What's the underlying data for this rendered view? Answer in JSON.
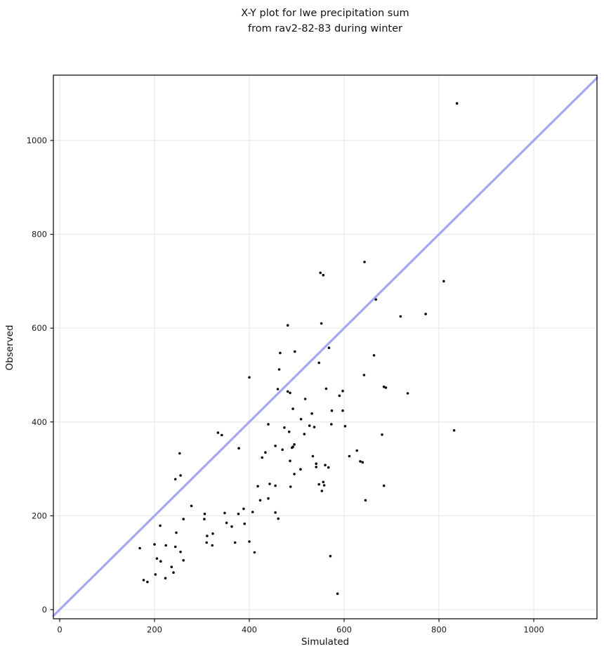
{
  "title": {
    "line1": "X-Y plot for lwe precipitation sum",
    "line2": "from rav2-82-83 during winter"
  },
  "chart_data": {
    "type": "scatter",
    "title": "X-Y plot for lwe precipitation sum from rav2-82-83 during winter",
    "xlabel": "Simulated",
    "ylabel": "Observed",
    "xlim": [
      -13.3,
      1133.3
    ],
    "ylim": [
      -19.5,
      1139.2
    ],
    "xticks": [
      0,
      200,
      400,
      600,
      800,
      1000
    ],
    "yticks": [
      0,
      200,
      400,
      600,
      800,
      1000
    ],
    "grid": true,
    "grid_color": "#e9e9e9",
    "spine_color": "#000000",
    "identity_line": {
      "type": "y=x",
      "x_start": -13.3,
      "x_end": 1133.3,
      "color": "#a5a7f2",
      "width": 3.2
    },
    "marker": {
      "color": "#0b0b0b",
      "radius": 1.8
    },
    "points": [
      [
        169,
        131
      ],
      [
        177,
        63
      ],
      [
        185,
        59
      ],
      [
        200,
        139
      ],
      [
        202,
        75
      ],
      [
        205,
        109
      ],
      [
        212,
        179
      ],
      [
        213,
        103
      ],
      [
        223,
        67
      ],
      [
        224,
        137
      ],
      [
        236,
        91
      ],
      [
        240,
        79
      ],
      [
        244,
        134
      ],
      [
        244,
        278
      ],
      [
        246,
        164
      ],
      [
        253,
        333
      ],
      [
        255,
        123
      ],
      [
        255,
        286
      ],
      [
        261,
        105
      ],
      [
        261,
        193
      ],
      [
        278,
        221
      ],
      [
        305,
        193
      ],
      [
        306,
        204
      ],
      [
        310,
        143
      ],
      [
        311,
        157
      ],
      [
        322,
        137
      ],
      [
        323,
        162
      ],
      [
        334,
        377
      ],
      [
        342,
        372
      ],
      [
        348,
        206
      ],
      [
        352,
        185
      ],
      [
        363,
        177
      ],
      [
        370,
        143
      ],
      [
        377,
        204
      ],
      [
        378,
        344
      ],
      [
        388,
        215
      ],
      [
        390,
        183
      ],
      [
        400,
        145
      ],
      [
        400,
        495
      ],
      [
        407,
        208
      ],
      [
        411,
        122
      ],
      [
        418,
        263
      ],
      [
        423,
        233
      ],
      [
        427,
        324
      ],
      [
        434,
        335
      ],
      [
        440,
        237
      ],
      [
        440,
        395
      ],
      [
        443,
        268
      ],
      [
        455,
        207
      ],
      [
        455,
        264
      ],
      [
        455,
        349
      ],
      [
        460,
        470
      ],
      [
        461,
        194
      ],
      [
        463,
        512
      ],
      [
        465,
        547
      ],
      [
        470,
        341
      ],
      [
        474,
        388
      ],
      [
        481,
        465
      ],
      [
        481,
        606
      ],
      [
        484,
        379
      ],
      [
        486,
        317
      ],
      [
        486,
        462
      ],
      [
        487,
        262
      ],
      [
        490,
        345
      ],
      [
        492,
        347
      ],
      [
        492,
        428
      ],
      [
        495,
        289
      ],
      [
        495,
        352
      ],
      [
        496,
        550
      ],
      [
        508,
        299
      ],
      [
        509,
        406
      ],
      [
        516,
        374
      ],
      [
        518,
        449
      ],
      [
        527,
        392
      ],
      [
        532,
        418
      ],
      [
        534,
        327
      ],
      [
        537,
        389
      ],
      [
        541,
        304
      ],
      [
        541,
        311
      ],
      [
        547,
        267
      ],
      [
        547,
        526
      ],
      [
        550,
        718
      ],
      [
        552,
        610
      ],
      [
        553,
        253
      ],
      [
        556,
        272
      ],
      [
        556,
        713
      ],
      [
        558,
        265
      ],
      [
        560,
        308
      ],
      [
        562,
        471
      ],
      [
        567,
        303
      ],
      [
        568,
        558
      ],
      [
        571,
        114
      ],
      [
        573,
        395
      ],
      [
        574,
        424
      ],
      [
        586,
        34
      ],
      [
        590,
        456
      ],
      [
        597,
        424
      ],
      [
        597,
        466
      ],
      [
        602,
        391
      ],
      [
        611,
        327
      ],
      [
        627,
        339
      ],
      [
        634,
        316
      ],
      [
        639,
        314
      ],
      [
        642,
        500
      ],
      [
        643,
        741
      ],
      [
        645,
        233
      ],
      [
        663,
        542
      ],
      [
        667,
        661
      ],
      [
        680,
        373
      ],
      [
        684,
        264
      ],
      [
        684,
        475
      ],
      [
        688,
        473
      ],
      [
        719,
        625
      ],
      [
        734,
        461
      ],
      [
        772,
        630
      ],
      [
        810,
        700
      ],
      [
        832,
        382
      ],
      [
        838,
        1079
      ]
    ]
  },
  "axes": {
    "x_label": "Simulated",
    "y_label": "Observed"
  }
}
